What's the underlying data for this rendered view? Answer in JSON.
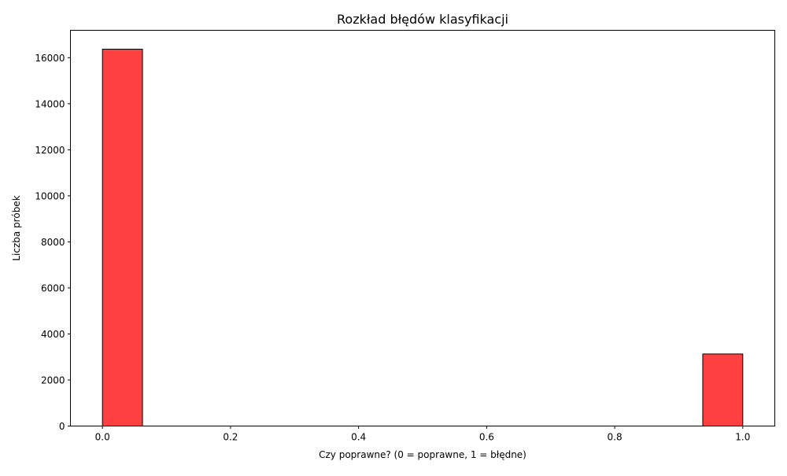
{
  "chart_data": {
    "type": "bar",
    "title": "Rozkład błędów klasyfikacji",
    "xlabel": "Czy poprawne? (0 = poprawne, 1 = błędne)",
    "ylabel": "Liczba próbek",
    "bins": [
      {
        "start": 0.0,
        "end": 0.0625,
        "count": 16370
      },
      {
        "start": 0.0625,
        "end": 0.125,
        "count": 0
      },
      {
        "start": 0.125,
        "end": 0.1875,
        "count": 0
      },
      {
        "start": 0.1875,
        "end": 0.25,
        "count": 0
      },
      {
        "start": 0.25,
        "end": 0.3125,
        "count": 0
      },
      {
        "start": 0.3125,
        "end": 0.375,
        "count": 0
      },
      {
        "start": 0.375,
        "end": 0.4375,
        "count": 0
      },
      {
        "start": 0.4375,
        "end": 0.5,
        "count": 0
      },
      {
        "start": 0.5,
        "end": 0.5625,
        "count": 0
      },
      {
        "start": 0.5625,
        "end": 0.625,
        "count": 0
      },
      {
        "start": 0.625,
        "end": 0.6875,
        "count": 0
      },
      {
        "start": 0.6875,
        "end": 0.75,
        "count": 0
      },
      {
        "start": 0.75,
        "end": 0.8125,
        "count": 0
      },
      {
        "start": 0.8125,
        "end": 0.875,
        "count": 0
      },
      {
        "start": 0.875,
        "end": 0.9375,
        "count": 0
      },
      {
        "start": 0.9375,
        "end": 1.0,
        "count": 3130
      }
    ],
    "xlim": [
      -0.05,
      1.05
    ],
    "ylim": [
      0,
      17190
    ],
    "x_ticks": [
      0.0,
      0.2,
      0.4,
      0.6,
      0.8,
      1.0
    ],
    "x_tick_labels": [
      "0.0",
      "0.2",
      "0.4",
      "0.6",
      "0.8",
      "1.0"
    ],
    "y_ticks": [
      0,
      2000,
      4000,
      6000,
      8000,
      10000,
      12000,
      14000,
      16000
    ],
    "y_tick_labels": [
      "0",
      "2000",
      "4000",
      "6000",
      "8000",
      "10000",
      "12000",
      "14000",
      "16000"
    ],
    "grid": false,
    "colors": {
      "bar_fill": "#ff0000",
      "bar_fill_opacity": 0.75,
      "bar_edge": "#000000"
    }
  }
}
